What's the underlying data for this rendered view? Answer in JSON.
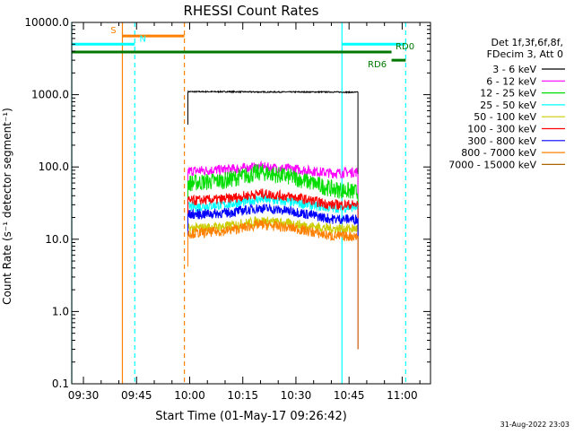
{
  "timestamp": "31-Aug-2022 23:03",
  "chart_data": {
    "type": "line",
    "title": "RHESSI Count Rates",
    "xlabel": "Start Time (01-May-17 09:26:42)",
    "ylabel": "Count Rate (s⁻¹ detector segment⁻¹)",
    "y_scale": "log",
    "ylim": [
      0.1,
      10000
    ],
    "xlim": [
      "09:26:42",
      "11:08:00"
    ],
    "x_ticks": [
      "09:30",
      "09:45",
      "10:00",
      "10:15",
      "10:30",
      "10:45",
      "11:00"
    ],
    "y_ticks": [
      "0.1",
      "1.0",
      "10.0",
      "100.0",
      "1000.0",
      "10000.0"
    ],
    "legend_header": [
      "Det 1f,3f,6f,8f,",
      "FDecim 3, Att 0"
    ],
    "legend_position": "right",
    "data_start": "09:59:30",
    "data_end": "10:47:30",
    "series": [
      {
        "name": "3 - 6 keV",
        "color": "#000000",
        "x": [
          "10:00",
          "10:10",
          "10:20",
          "10:30",
          "10:40",
          "10:47"
        ],
        "values": [
          1100,
          1100,
          1090,
          1090,
          1090,
          1080
        ]
      },
      {
        "name": "6 - 12 keV",
        "color": "#ff00ff",
        "x": [
          "10:00",
          "10:10",
          "10:20",
          "10:30",
          "10:40",
          "10:47"
        ],
        "values": [
          88,
          92,
          100,
          93,
          82,
          85
        ]
      },
      {
        "name": "12 - 25 keV",
        "color": "#00dd00",
        "x": [
          "10:00",
          "10:10",
          "10:20",
          "10:30",
          "10:40",
          "10:47"
        ],
        "values": [
          60,
          65,
          85,
          70,
          50,
          45
        ]
      },
      {
        "name": "25 - 50 keV",
        "color": "#00ffff",
        "x": [
          "10:00",
          "10:10",
          "10:20",
          "10:30",
          "10:40",
          "10:47"
        ],
        "values": [
          28,
          30,
          36,
          32,
          27,
          28
        ]
      },
      {
        "name": "50 - 100 keV",
        "color": "#cccc00",
        "x": [
          "10:00",
          "10:10",
          "10:20",
          "10:30",
          "10:40",
          "10:47"
        ],
        "values": [
          14,
          15,
          18,
          16,
          14,
          14
        ]
      },
      {
        "name": "100 - 300 keV",
        "color": "#ff0000",
        "x": [
          "10:00",
          "10:10",
          "10:20",
          "10:30",
          "10:40",
          "10:47"
        ],
        "values": [
          34,
          36,
          43,
          38,
          30,
          30
        ]
      },
      {
        "name": "300 - 800 keV",
        "color": "#0000ff",
        "x": [
          "10:00",
          "10:10",
          "10:20",
          "10:30",
          "10:40",
          "10:47"
        ],
        "values": [
          22,
          23,
          27,
          24,
          19,
          19
        ]
      },
      {
        "name": "800 - 7000 keV",
        "color": "#ff8000",
        "x": [
          "10:00",
          "10:10",
          "10:20",
          "10:30",
          "10:40",
          "10:47"
        ],
        "values": [
          12,
          13,
          16,
          14,
          11,
          11
        ]
      },
      {
        "name": "7000 - 15000 keV",
        "color": "#aa6600",
        "x": [],
        "values": []
      }
    ],
    "annotations": [
      {
        "label": "S",
        "color": "#ff8000",
        "kind": "bar",
        "x_start": "09:41",
        "x_end": "09:58:30",
        "level": 6500
      },
      {
        "label": "N",
        "color": "#00ffff",
        "kind": "bar",
        "x_start": "09:26:42",
        "x_end": "09:44:30",
        "level": 5000
      },
      {
        "label": "",
        "color": "#00ffff",
        "kind": "bar",
        "x_start": "10:43",
        "x_end": "11:01",
        "level": 5000
      },
      {
        "label": "RD0",
        "color": "#007700",
        "kind": "bar",
        "x_start": "09:26:42",
        "x_end": "10:57",
        "level": 3900
      },
      {
        "label": "RD6",
        "color": "#007700",
        "kind": "bar",
        "x_start": "10:57",
        "x_end": "11:01",
        "level": 3000
      }
    ],
    "vertical_markers": [
      {
        "x": "09:26:42",
        "color": "#00ffff",
        "style": "solid"
      },
      {
        "x": "09:41",
        "color": "#ff8000",
        "style": "solid"
      },
      {
        "x": "09:44:30",
        "color": "#00ffff",
        "style": "dashed"
      },
      {
        "x": "09:58:30",
        "color": "#ff8000",
        "style": "dashed"
      },
      {
        "x": "10:43",
        "color": "#00ffff",
        "style": "solid"
      },
      {
        "x": "11:01",
        "color": "#00ffff",
        "style": "dashed"
      }
    ]
  }
}
